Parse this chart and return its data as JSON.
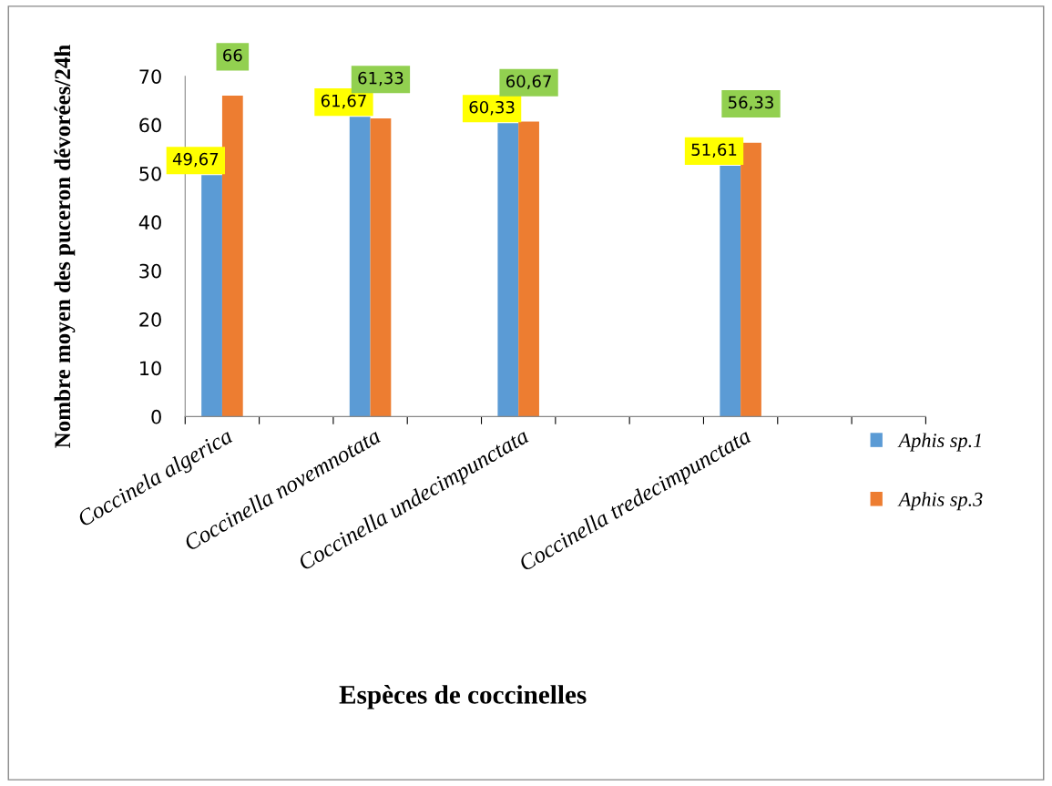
{
  "chart_data": {
    "type": "bar",
    "ylabel": "Nombre moyen des puceron dévorées/24h",
    "xlabel": "Espèces de coccinelles",
    "categories": [
      "Coccinela algerica",
      null,
      "Coccinella novemnotata",
      null,
      "Coccinella undecimpunctata",
      null,
      null,
      "Coccinella tredecimpunctata",
      null,
      null
    ],
    "series": [
      {
        "name": "Aphis sp.1",
        "color": "#5b9bd5",
        "values": [
          49.67,
          null,
          61.67,
          null,
          60.33,
          null,
          null,
          51.61,
          null,
          null
        ],
        "value_labels": [
          "49,67",
          null,
          "61,67",
          null,
          "60,33",
          null,
          null,
          "51,61",
          null,
          null
        ]
      },
      {
        "name": "Aphis sp.3",
        "color": "#ed7d31",
        "values": [
          66,
          null,
          61.33,
          null,
          60.67,
          null,
          null,
          56.33,
          null,
          null
        ],
        "value_labels": [
          "66",
          null,
          "61,33",
          null,
          "60,67",
          null,
          null,
          "56,33",
          null,
          null
        ]
      }
    ],
    "ylim": [
      0,
      70
    ],
    "yticks": [
      0,
      10,
      20,
      30,
      40,
      50,
      60,
      70
    ],
    "grid": false,
    "legend": "right"
  }
}
